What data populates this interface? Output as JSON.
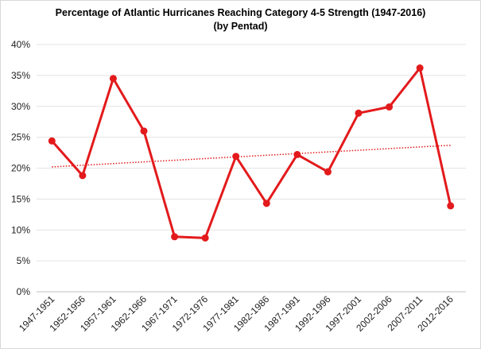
{
  "chart_data": {
    "type": "line",
    "title": "Percentage of Atlantic Hurricanes Reaching Category 4-5 Strength (1947-2016)",
    "subtitle": "(by Pentad)",
    "xlabel": "",
    "ylabel": "",
    "categories": [
      "1947-1951",
      "1952-1956",
      "1957-1961",
      "1962-1966",
      "1967-1971",
      "1972-1976",
      "1977-1981",
      "1982-1986",
      "1987-1991",
      "1992-1996",
      "1997-2001",
      "2002-2006",
      "2007-2011",
      "2012-2016"
    ],
    "y_ticks": [
      "0%",
      "5%",
      "10%",
      "15%",
      "20%",
      "25%",
      "30%",
      "35%",
      "40%"
    ],
    "ylim": [
      0,
      40
    ],
    "series": [
      {
        "values": [
          24.4,
          18.8,
          34.5,
          26.0,
          8.9,
          8.7,
          21.9,
          14.3,
          22.2,
          19.4,
          28.9,
          29.9,
          36.2,
          13.9
        ],
        "color": "#e31a1c"
      }
    ],
    "trendline": {
      "start": 20.2,
      "end": 23.7,
      "style": "dotted",
      "color": "#e31a1c"
    },
    "grid": true,
    "legend": "none"
  }
}
